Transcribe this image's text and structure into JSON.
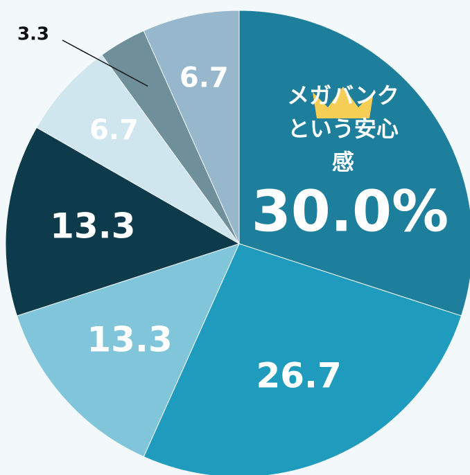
{
  "chart_data": {
    "type": "pie",
    "categories": [
      "メガバンク\nという安心感",
      null,
      null,
      null,
      null,
      null,
      null
    ],
    "values": [
      30.0,
      26.7,
      13.3,
      13.3,
      6.7,
      3.3,
      6.7
    ],
    "value_labels": [
      "30.0%",
      "26.7",
      "13.3",
      "13.3",
      "6.7",
      "3.3",
      "6.7"
    ],
    "colors": [
      "#1e7f9c",
      "#1f9bbd",
      "#80c5d9",
      "#0e3b4b",
      "#cfe6ee",
      "#6f8f9b",
      "#97b8cc"
    ]
  }
}
